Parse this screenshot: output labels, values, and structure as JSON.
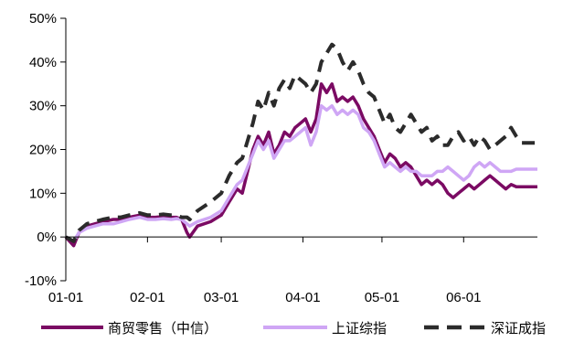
{
  "chart_data": {
    "type": "line",
    "x_ticks": [
      "01-01",
      "02-01",
      "03-01",
      "04-01",
      "05-01",
      "06-01"
    ],
    "y_ticks": [
      "-10%",
      "0%",
      "10%",
      "20%",
      "30%",
      "40%",
      "50%"
    ],
    "ylim": [
      -10,
      50
    ],
    "grid": false,
    "legend_position": "bottom",
    "series": [
      {
        "name": "商贸零售（中信）",
        "color": "#7B0A63",
        "style": "solid",
        "x": [
          0,
          3,
          5,
          8,
          11,
          14,
          18,
          21,
          24,
          28,
          31,
          34,
          37,
          40,
          42,
          44,
          46,
          47,
          50,
          55,
          59,
          62,
          65,
          67,
          69,
          71,
          73,
          75,
          77,
          79,
          81,
          83,
          85,
          87,
          89,
          91,
          93,
          95,
          97,
          99,
          101,
          103,
          105,
          107,
          109,
          111,
          113,
          115,
          117,
          119,
          121,
          123,
          125,
          127,
          129,
          131,
          133,
          135,
          137,
          139,
          141,
          143,
          145,
          147,
          149,
          151,
          153,
          155,
          157,
          159,
          161,
          163,
          165,
          167,
          169,
          171,
          173,
          175,
          177,
          179
        ],
        "y": [
          0,
          -2,
          1,
          2.5,
          3,
          3.5,
          4,
          4,
          4.5,
          5,
          4.5,
          4.5,
          4.7,
          4.5,
          4.5,
          4,
          1,
          0,
          2.5,
          3.5,
          5,
          8,
          11,
          10,
          15,
          20,
          23,
          21,
          24,
          19,
          21,
          24,
          23,
          25,
          26,
          27,
          24,
          27,
          35,
          33,
          35,
          31,
          32,
          31,
          32,
          30,
          27,
          25,
          23,
          20,
          17,
          19,
          18,
          16,
          17,
          16,
          14,
          12,
          13,
          12,
          13,
          12,
          10,
          9,
          10,
          11,
          12,
          11,
          12,
          13,
          14,
          13,
          12,
          11,
          12,
          11.5,
          11.5,
          11.5,
          11.5,
          11.5
        ]
      },
      {
        "name": "上证综指",
        "color": "#CFA6F5",
        "style": "solid",
        "x": [
          0,
          3,
          5,
          8,
          11,
          14,
          18,
          21,
          24,
          28,
          31,
          34,
          37,
          40,
          42,
          44,
          46,
          47,
          50,
          55,
          59,
          62,
          65,
          67,
          69,
          71,
          73,
          75,
          77,
          79,
          81,
          83,
          85,
          87,
          89,
          91,
          93,
          95,
          97,
          99,
          101,
          103,
          105,
          107,
          109,
          111,
          113,
          115,
          117,
          119,
          121,
          123,
          125,
          127,
          129,
          131,
          133,
          135,
          137,
          139,
          141,
          143,
          145,
          147,
          149,
          151,
          153,
          155,
          157,
          159,
          161,
          163,
          165,
          167,
          169,
          171,
          173,
          175,
          177,
          179
        ],
        "y": [
          0,
          -1,
          1,
          2,
          2.5,
          3,
          3,
          3.5,
          4,
          4.5,
          4,
          4,
          4.2,
          4,
          4.2,
          4,
          3,
          2.5,
          3.5,
          4.5,
          6,
          9,
          12,
          13,
          16,
          19,
          22,
          20,
          22,
          18,
          20,
          22,
          22,
          23,
          24,
          25,
          21,
          24,
          30,
          29,
          30,
          28,
          29,
          28,
          29,
          28,
          25,
          24,
          22,
          19,
          16,
          17,
          16,
          15,
          16,
          15,
          15,
          14,
          14,
          14,
          15,
          15,
          16,
          15,
          14,
          13,
          14,
          16,
          17,
          16,
          17,
          16,
          15,
          15,
          15,
          15.5,
          15.5,
          15.5,
          15.5,
          15.5
        ]
      },
      {
        "name": "深证成指",
        "color": "#2B2B2B",
        "style": "dashed",
        "x": [
          0,
          3,
          5,
          8,
          11,
          14,
          18,
          21,
          24,
          28,
          31,
          34,
          37,
          40,
          42,
          44,
          46,
          47,
          50,
          55,
          59,
          62,
          65,
          67,
          69,
          71,
          73,
          75,
          77,
          79,
          81,
          83,
          85,
          87,
          89,
          91,
          93,
          95,
          97,
          99,
          101,
          103,
          105,
          107,
          109,
          111,
          113,
          115,
          117,
          119,
          121,
          123,
          125,
          127,
          129,
          131,
          133,
          135,
          137,
          139,
          141,
          143,
          145,
          147,
          149,
          151,
          153,
          155,
          157,
          159,
          161,
          163,
          165,
          167,
          169,
          171,
          173,
          175,
          177,
          179
        ],
        "y": [
          0,
          -1,
          1.5,
          3,
          3.5,
          4,
          4.5,
          4.5,
          5,
          5.5,
          5,
          5,
          5.2,
          5,
          5,
          4.5,
          4.5,
          4,
          6,
          8,
          10,
          14,
          17,
          18,
          22,
          26,
          31,
          29,
          33,
          30,
          34,
          36,
          34,
          37,
          36,
          35,
          33,
          35,
          40,
          42,
          44,
          43,
          40,
          38,
          40,
          38,
          35,
          33,
          32,
          29,
          26,
          28,
          25,
          24,
          26,
          28,
          26,
          24,
          25,
          22,
          23,
          21,
          21,
          23,
          24,
          22,
          23,
          21,
          23,
          22,
          20,
          21,
          22,
          23,
          25,
          23,
          21.5,
          21.5,
          21.5,
          21.5
        ]
      }
    ]
  }
}
